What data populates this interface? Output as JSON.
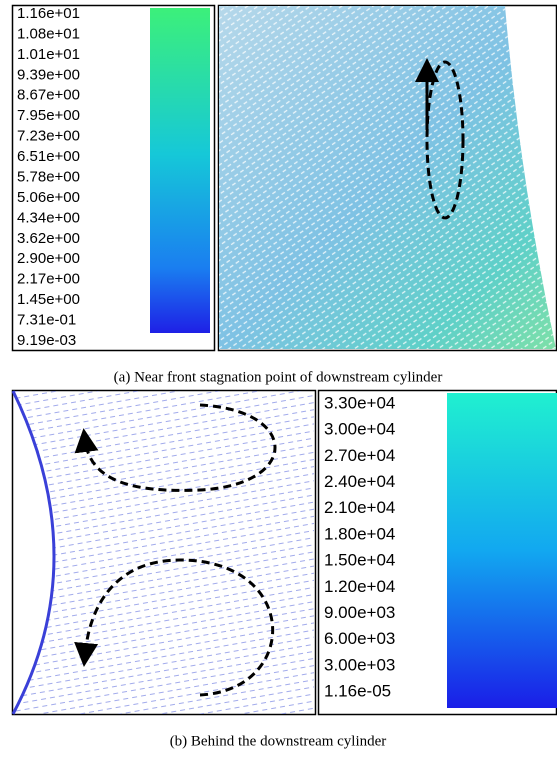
{
  "panel_a": {
    "legend_labels": [
      "1.16e+01",
      "1.08e+01",
      "1.01e+01",
      "9.39e+00",
      "8.67e+00",
      "7.95e+00",
      "7.23e+00",
      "6.51e+00",
      "5.78e+00",
      "5.06e+00",
      "4.34e+00",
      "3.62e+00",
      "2.90e+00",
      "2.17e+00",
      "1.45e+00",
      "7.31e-01",
      "9.19e-03"
    ],
    "caption": "(a) Near front stagnation point of downstream cylinder"
  },
  "panel_b": {
    "legend_labels": [
      "3.30e+04",
      "3.00e+04",
      "2.70e+04",
      "2.40e+04",
      "2.10e+04",
      "1.80e+04",
      "1.50e+04",
      "1.20e+04",
      "9.00e+03",
      "6.00e+03",
      "3.00e+03",
      "1.16e-05"
    ],
    "caption": "(b) Behind the downstream cylinder"
  }
}
